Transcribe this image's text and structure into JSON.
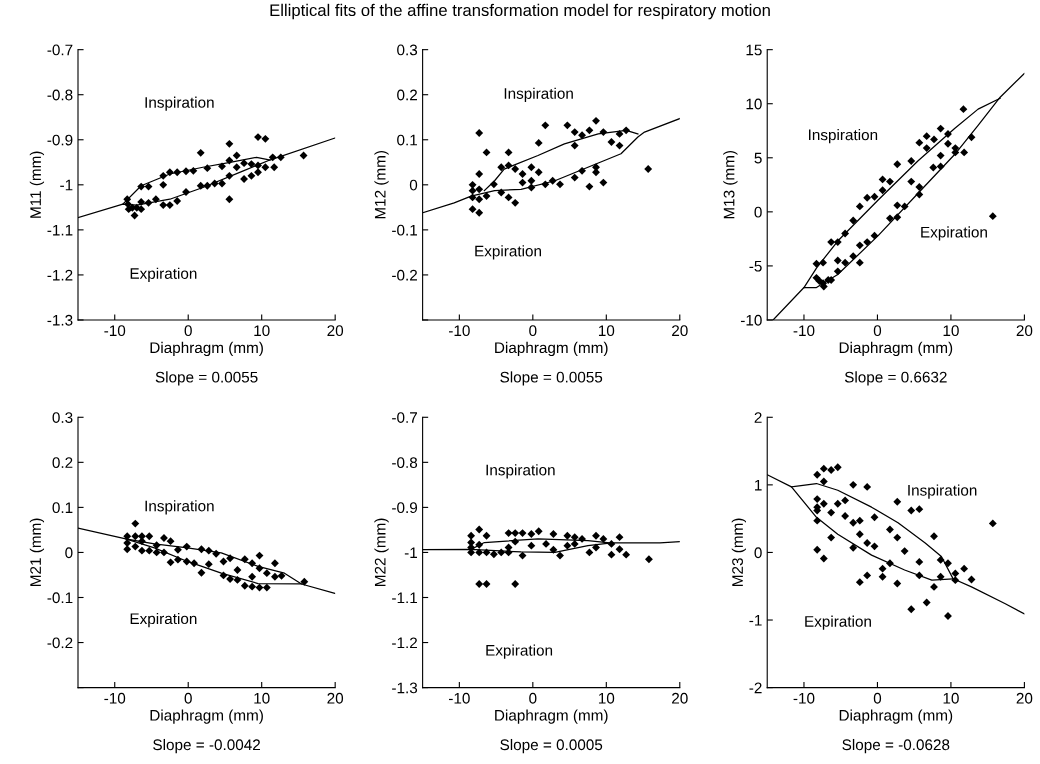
{
  "chart_data": [
    {
      "type": "scatter",
      "title": "Elliptical fits of the affine transformation model for respiratory motion",
      "xlabel": "Diaphragm (mm)",
      "ylabel": "M11 (mm)",
      "xlim": [
        -15,
        20
      ],
      "xticks": [
        -10,
        0,
        10,
        20
      ],
      "ylim": [
        -1.3,
        -0.7
      ],
      "yticks": [
        -1.3,
        -1.2,
        -1.1,
        -1,
        -0.9,
        -0.8,
        -0.7
      ],
      "grid": false,
      "annotations": [
        "Inspiration",
        "Expiration",
        "Slope = 0.0055"
      ],
      "series": [
        {
          "marker": "diamond",
          "color": "#000000",
          "x": [
            -8.3,
            -8.2,
            -8.1,
            -7.6,
            -7.3,
            -7.0,
            -6.4,
            -6.4,
            -6.4,
            -5.4,
            -5.4,
            -4.4,
            -3.4,
            -3.4,
            -3.4,
            -2.5,
            -2.5,
            -1.5,
            -1.5,
            -0.3,
            -0.3,
            0.7,
            1.7,
            1.7,
            2.6,
            2.6,
            3.6,
            4.6,
            4.6,
            5.6,
            5.6,
            5.6,
            5.6,
            6.6,
            6.6,
            7.6,
            7.6,
            8.6,
            8.6,
            9.5,
            9.5,
            9.5,
            10.5,
            10.5,
            11.5,
            11.7,
            12.6,
            15.7
          ],
          "values": [
            -1.032,
            -1.043,
            -1.054,
            -1.051,
            -1.068,
            -1.051,
            -1.038,
            -1.054,
            -1.004,
            -1.004,
            -1.04,
            -1.032,
            -1.0,
            -0.98,
            -1.045,
            -1.045,
            -0.972,
            -0.972,
            -1.036,
            -0.97,
            -1.016,
            -0.969,
            -0.929,
            -1.002,
            -0.963,
            -1.002,
            -0.997,
            -0.959,
            -0.997,
            -0.909,
            -0.946,
            -0.98,
            -1.032,
            -0.935,
            -0.961,
            -0.952,
            -0.987,
            -0.954,
            -0.98,
            -0.894,
            -0.957,
            -0.972,
            -0.898,
            -0.961,
            -0.939,
            -0.961,
            -0.939,
            -0.935
          ]
        },
        {
          "type": "line",
          "color": "#000000",
          "x": [
            -15,
            -8.9,
            -7,
            -2.5,
            2,
            7.5,
            11.1,
            20
          ],
          "values": [
            -1.073,
            -1.043,
            -1.045,
            -1.032,
            -1.006,
            -0.969,
            -0.945,
            -0.896
          ]
        },
        {
          "type": "line",
          "color": "#000000",
          "x": [
            -8.9,
            -6.4,
            -2.5,
            2.0,
            5.7,
            9.3,
            11.1
          ],
          "values": [
            -1.043,
            -1.002,
            -0.976,
            -0.961,
            -0.95,
            -0.939,
            -0.945
          ]
        }
      ]
    },
    {
      "type": "scatter",
      "xlabel": "Diaphragm (mm)",
      "ylabel": "M12 (mm)",
      "xlim": [
        -15,
        20
      ],
      "xticks": [
        -10,
        0,
        10,
        20
      ],
      "ylim": [
        -0.3,
        0.3
      ],
      "yticks": [
        {
          "value": -0.3,
          "label": null
        },
        -0.2,
        -0.1,
        0,
        0.1,
        0.2,
        0.3
      ],
      "grid": false,
      "annotations": [
        "Inspiration",
        "Expiration",
        "Slope = 0.0055"
      ],
      "series": [
        {
          "marker": "diamond",
          "color": "#000000",
          "x": [
            -8.2,
            -8.2,
            -8.2,
            -8.2,
            -7.3,
            -7.3,
            -7.3,
            -7.3,
            -7.3,
            -6.3,
            -6.3,
            -5.3,
            -4.3,
            -4.3,
            -3.3,
            -3.3,
            -3.3,
            -2.4,
            -2.4,
            -1.4,
            -1.4,
            -0.2,
            -0.2,
            -0.2,
            0.8,
            0.8,
            1.7,
            1.7,
            2.7,
            3.7,
            4.7,
            5.7,
            5.7,
            5.7,
            6.7,
            6.7,
            7.7,
            7.7,
            8.6,
            8.6,
            8.6,
            9.6,
            9.6,
            10.7,
            11.8,
            11.8,
            12.7,
            15.7
          ],
          "values": [
            0.0,
            -0.013,
            -0.028,
            -0.054,
            0.115,
            0.024,
            -0.01,
            -0.032,
            -0.062,
            0.072,
            -0.025,
            0.001,
            0.039,
            -0.017,
            0.072,
            0.043,
            -0.028,
            0.035,
            -0.04,
            0.024,
            0.005,
            0.039,
            0.009,
            -0.006,
            0.093,
            0.028,
            0.132,
            0.001,
            0.009,
            0.001,
            0.132,
            0.117,
            0.087,
            0.016,
            0.11,
            0.031,
            0.121,
            -0.004,
            0.142,
            0.039,
            0.028,
            0.117,
            0.005,
            0.095,
            0.113,
            0.087,
            0.121,
            0.035
          ]
        },
        {
          "type": "line",
          "color": "#000000",
          "x": [
            -15,
            -10.7,
            -8.4,
            -5.2,
            -1.6,
            3,
            7.5,
            12,
            14.3,
            15.2,
            20
          ],
          "values": [
            -0.062,
            -0.04,
            -0.025,
            -0.013,
            -0.01,
            0.009,
            0.039,
            0.069,
            0.106,
            0.117,
            0.147
          ]
        },
        {
          "type": "line",
          "color": "#000000",
          "x": [
            -6.6,
            -5.2,
            -3.9,
            0.7,
            4.3,
            8.9,
            12.7,
            14.3
          ],
          "values": [
            -0.013,
            0.009,
            0.035,
            0.065,
            0.091,
            0.113,
            0.121,
            0.113
          ]
        }
      ]
    },
    {
      "type": "scatter",
      "xlabel": "Diaphragm (mm)",
      "ylabel": "M13 (mm)",
      "xlim": [
        -15,
        20
      ],
      "xticks": [
        -10,
        0,
        10,
        20
      ],
      "ylim": [
        -10,
        15
      ],
      "yticks": [
        -10,
        -5,
        0,
        5,
        10,
        15
      ],
      "grid": false,
      "annotations": [
        "Inspiration",
        "Expiration",
        "Slope = 0.6632"
      ],
      "series": [
        {
          "marker": "diamond",
          "color": "#000000",
          "x": [
            -8.3,
            -8.3,
            -7.9,
            -7.4,
            -7.4,
            -7.3,
            -6.7,
            -6.3,
            -6.3,
            -5.4,
            -5.4,
            -5.4,
            -4.4,
            -4.4,
            -3.3,
            -3.3,
            -2.4,
            -2.4,
            -2.4,
            -1.4,
            -1.4,
            -0.4,
            -0.4,
            0.7,
            0.7,
            1.7,
            1.7,
            2.7,
            2.7,
            2.7,
            3.7,
            4.6,
            4.6,
            5.7,
            5.7,
            5.7,
            6.7,
            6.7,
            7.6,
            7.7,
            8.6,
            8.6,
            8.6,
            9.6,
            9.6,
            10.6,
            10.6,
            11.7,
            11.8,
            12.8,
            15.7
          ],
          "values": [
            -4.8,
            -6.1,
            -6.4,
            -4.7,
            -6.6,
            -6.9,
            -6.3,
            -2.8,
            -6.3,
            -2.8,
            -4.5,
            -5.5,
            -2.0,
            -4.7,
            -0.8,
            -4.1,
            0.5,
            -3.1,
            -4.7,
            1.3,
            -2.8,
            1.4,
            -2.2,
            3.0,
            2.0,
            -0.6,
            2.8,
            4.4,
            0.6,
            -0.5,
            0.5,
            4.7,
            2.8,
            6.4,
            2.3,
            1.6,
            7.0,
            5.9,
            4.1,
            6.7,
            7.7,
            5.2,
            4.2,
            7.2,
            6.3,
            5.9,
            5.5,
            9.5,
            5.5,
            6.9,
            -0.4
          ]
        },
        {
          "type": "line",
          "color": "#000000",
          "x": [
            -14.2,
            -10,
            -8.3,
            -5.4,
            0.1,
            5.5,
            10.5,
            13.7,
            16.7,
            20
          ],
          "values": [
            -10,
            -7,
            -7,
            -5.8,
            -2.2,
            1.7,
            5.3,
            8.0,
            10.6,
            12.8
          ]
        },
        {
          "type": "line",
          "color": "#000000",
          "x": [
            -10,
            -8.3,
            -5.4,
            0.1,
            5.5,
            10.5,
            13.7,
            16.7
          ],
          "values": [
            -7,
            -5.2,
            -2.7,
            1.1,
            4.7,
            7.7,
            9.5,
            10.5
          ]
        }
      ]
    },
    {
      "type": "scatter",
      "xlabel": "Diaphragm (mm)",
      "ylabel": "M21 (mm)",
      "xlim": [
        -15,
        20
      ],
      "xticks": [
        -10,
        0,
        10,
        20
      ],
      "ylim": [
        -0.3,
        0.3
      ],
      "yticks": [
        {
          "value": -0.3,
          "label": null
        },
        -0.2,
        -0.1,
        0,
        0.1,
        0.2,
        0.3
      ],
      "grid": false,
      "annotations": [
        "Inspiration",
        "Expiration",
        "Slope = -0.0042"
      ],
      "series": [
        {
          "marker": "diamond",
          "color": "#000000",
          "x": [
            -8.3,
            -8.3,
            -8.3,
            -7.2,
            -7.2,
            -7.2,
            -6.3,
            -6.3,
            -6.3,
            -5.3,
            -5.3,
            -4.3,
            -4.3,
            -3.3,
            -3.3,
            -2.4,
            -2.4,
            -1.4,
            -1.4,
            -0.2,
            -0.2,
            0.8,
            1.8,
            1.8,
            2.8,
            2.8,
            3.8,
            4.8,
            4.8,
            5.7,
            5.7,
            6.7,
            6.7,
            7.7,
            7.7,
            8.7,
            8.7,
            8.7,
            9.7,
            9.7,
            9.7,
            10.7,
            10.7,
            11.8,
            11.8,
            12.7,
            15.8
          ],
          "values": [
            0.036,
            0.021,
            0.007,
            0.064,
            0.036,
            0.013,
            0.036,
            0.025,
            0.004,
            0.036,
            0.004,
            0.016,
            0.0,
            0.032,
            0.0,
            0.025,
            -0.022,
            0.006,
            -0.016,
            0.013,
            -0.02,
            -0.024,
            0.007,
            -0.045,
            0.004,
            -0.026,
            -0.003,
            -0.02,
            -0.051,
            -0.013,
            -0.059,
            -0.039,
            -0.061,
            -0.015,
            -0.074,
            -0.024,
            -0.054,
            -0.076,
            -0.007,
            -0.035,
            -0.078,
            -0.078,
            -0.046,
            -0.024,
            -0.054,
            -0.052,
            -0.065
          ]
        },
        {
          "type": "line",
          "color": "#000000",
          "x": [
            -15,
            -8.5,
            -4.6,
            -0.1,
            4.5,
            9.5,
            15.4,
            20
          ],
          "values": [
            0.054,
            0.03,
            0.01,
            -0.02,
            -0.046,
            -0.069,
            -0.07,
            -0.091
          ]
        },
        {
          "type": "line",
          "color": "#000000",
          "x": [
            -8.5,
            -4.6,
            -0.1,
            4.5,
            9.5,
            13.1,
            15.4
          ],
          "values": [
            0.03,
            0.019,
            0.01,
            -0.001,
            -0.031,
            -0.046,
            -0.07
          ]
        }
      ]
    },
    {
      "type": "scatter",
      "xlabel": "Diaphragm (mm)",
      "ylabel": "M22 (mm)",
      "xlim": [
        -15,
        20
      ],
      "xticks": [
        -10,
        0,
        10,
        20
      ],
      "ylim": [
        -1.3,
        -0.7
      ],
      "yticks": [
        -1.3,
        -1.2,
        -1.1,
        -1,
        -0.9,
        -0.8,
        -0.7
      ],
      "grid": false,
      "annotations": [
        "Inspiration",
        "Expiration",
        "Slope = 0.0005"
      ],
      "series": [
        {
          "marker": "diamond",
          "color": "#000000",
          "x": [
            -8.4,
            -8.4,
            -8.4,
            -8.4,
            -7.3,
            -7.3,
            -7.3,
            -7.3,
            -6.3,
            -6.3,
            -6.3,
            -5.3,
            -4.3,
            -3.3,
            -3.3,
            -3.3,
            -2.4,
            -2.4,
            -2.4,
            -1.4,
            -1.4,
            -0.2,
            -0.2,
            0.8,
            1.8,
            2.8,
            2.8,
            3.7,
            4.7,
            4.7,
            5.7,
            5.7,
            6.7,
            7.7,
            8.6,
            8.6,
            9.6,
            10.7,
            10.7,
            11.8,
            11.8,
            12.7,
            15.8
          ],
          "values": [
            -0.963,
            -0.978,
            -0.989,
            -1.0,
            -0.949,
            -0.983,
            -1.0,
            -1.07,
            -0.963,
            -1.0,
            -1.07,
            -1.004,
            -1.0,
            -0.957,
            -0.989,
            -1.0,
            -0.957,
            -0.976,
            -1.07,
            -0.957,
            -1.007,
            -0.959,
            -0.985,
            -0.953,
            -0.981,
            -0.959,
            -0.994,
            -1.007,
            -0.963,
            -0.985,
            -0.966,
            -0.981,
            -0.97,
            -1.0,
            -0.963,
            -0.989,
            -0.97,
            -0.981,
            -1.005,
            -0.966,
            -0.993,
            -1.005,
            -1.015
          ]
        },
        {
          "type": "line",
          "color": "#000000",
          "x": [
            -15,
            -8.4,
            -1.6,
            3,
            7.5,
            10.7,
            17.3,
            20
          ],
          "values": [
            -0.994,
            -0.993,
            -0.999,
            -1.0,
            -0.985,
            -0.979,
            -0.979,
            -0.976
          ]
        },
        {
          "type": "line",
          "color": "#000000",
          "x": [
            -8.4,
            -6.6,
            0.7,
            7.5,
            10.7
          ],
          "values": [
            -0.993,
            -0.978,
            -0.97,
            -0.974,
            -0.979
          ]
        }
      ]
    },
    {
      "type": "scatter",
      "xlabel": "Diaphragm (mm)",
      "ylabel": "M23 (mm)",
      "xlim": [
        -15,
        20
      ],
      "xticks": [
        -10,
        0,
        10,
        20
      ],
      "ylim": [
        -2,
        2
      ],
      "yticks": [
        -2,
        -1,
        0,
        1,
        2
      ],
      "grid": false,
      "annotations": [
        "Inspiration",
        "Expiration",
        "Slope = -0.0628"
      ],
      "series": [
        {
          "marker": "diamond",
          "color": "#000000",
          "x": [
            -8.2,
            -8.2,
            -8.2,
            -8.2,
            -8.2,
            -8.2,
            -7.3,
            -7.3,
            -7.3,
            -7.3,
            -6.3,
            -6.3,
            -6.3,
            -5.4,
            -5.4,
            -4.4,
            -4.4,
            -3.3,
            -3.3,
            -3.3,
            -2.4,
            -2.4,
            -2.4,
            -1.4,
            -1.4,
            -1.4,
            -0.4,
            -0.4,
            0.7,
            0.7,
            1.7,
            1.7,
            2.7,
            2.7,
            2.7,
            3.7,
            4.6,
            4.6,
            5.7,
            5.7,
            5.7,
            6.7,
            7.7,
            7.7,
            8.6,
            8.6,
            9.6,
            9.6,
            10.6,
            10.6,
            11.8,
            12.8,
            15.7
          ],
          "values": [
            1.15,
            0.79,
            0.67,
            0.62,
            0.47,
            0.04,
            1.24,
            1.05,
            0.72,
            -0.09,
            1.22,
            0.59,
            0.22,
            1.26,
            0.72,
            0.77,
            0.54,
            1.0,
            0.44,
            0.07,
            0.47,
            0.27,
            -0.44,
            0.97,
            0.14,
            -0.34,
            0.52,
            0.09,
            -0.24,
            -0.36,
            0.34,
            -0.16,
            0.75,
            0.22,
            -0.46,
            0.02,
            0.62,
            -0.84,
            0.64,
            -0.14,
            -0.34,
            -0.74,
            0.24,
            -0.51,
            -0.11,
            -0.36,
            -0.16,
            -0.94,
            -0.31,
            -0.41,
            -0.24,
            -0.4,
            0.43
          ]
        },
        {
          "type": "line",
          "color": "#000000",
          "x": [
            -15,
            -11.7,
            -8.3,
            -5.4,
            -0.8,
            3.7,
            7.4,
            10.3,
            12.8,
            17.4,
            20
          ],
          "values": [
            1.15,
            0.97,
            0.52,
            0.27,
            -0.04,
            -0.26,
            -0.41,
            -0.39,
            -0.51,
            -0.76,
            -0.91
          ]
        },
        {
          "type": "line",
          "color": "#000000",
          "x": [
            -11.7,
            -10.4,
            -8.3,
            -5.4,
            -0.8,
            2.8,
            6.5,
            8.7,
            10.3
          ],
          "values": [
            0.97,
            0.99,
            1.02,
            0.92,
            0.67,
            0.44,
            0.14,
            -0.06,
            -0.39
          ]
        }
      ]
    }
  ]
}
